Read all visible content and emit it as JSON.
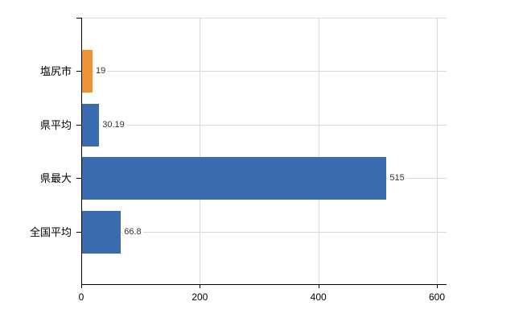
{
  "chart_data": {
    "type": "bar",
    "orientation": "horizontal",
    "title": "",
    "xlabel": "",
    "ylabel": "",
    "categories": [
      "塩尻市",
      "県平均",
      "県最大",
      "全国平均"
    ],
    "values": [
      19,
      30.19,
      515,
      66.8
    ],
    "value_labels": [
      "19",
      "30.19",
      "515",
      "66.8"
    ],
    "bar_colors": [
      "#ED9438",
      "#3B6CB0",
      "#3B6CB0",
      "#3B6CB0"
    ],
    "x_ticks": [
      0,
      200,
      400,
      600
    ],
    "x_tick_labels": [
      "0",
      "200",
      "400",
      "600"
    ],
    "xlim": [
      0,
      600
    ],
    "grid": true,
    "legend": false
  },
  "colors": {
    "background": "#ffffff",
    "axis": "#000000",
    "grid": "#d9d9d9",
    "value_label": "#333333",
    "category_label": "#000000",
    "highlight_bar": "#ED9438",
    "default_bar": "#3B6CB0"
  }
}
